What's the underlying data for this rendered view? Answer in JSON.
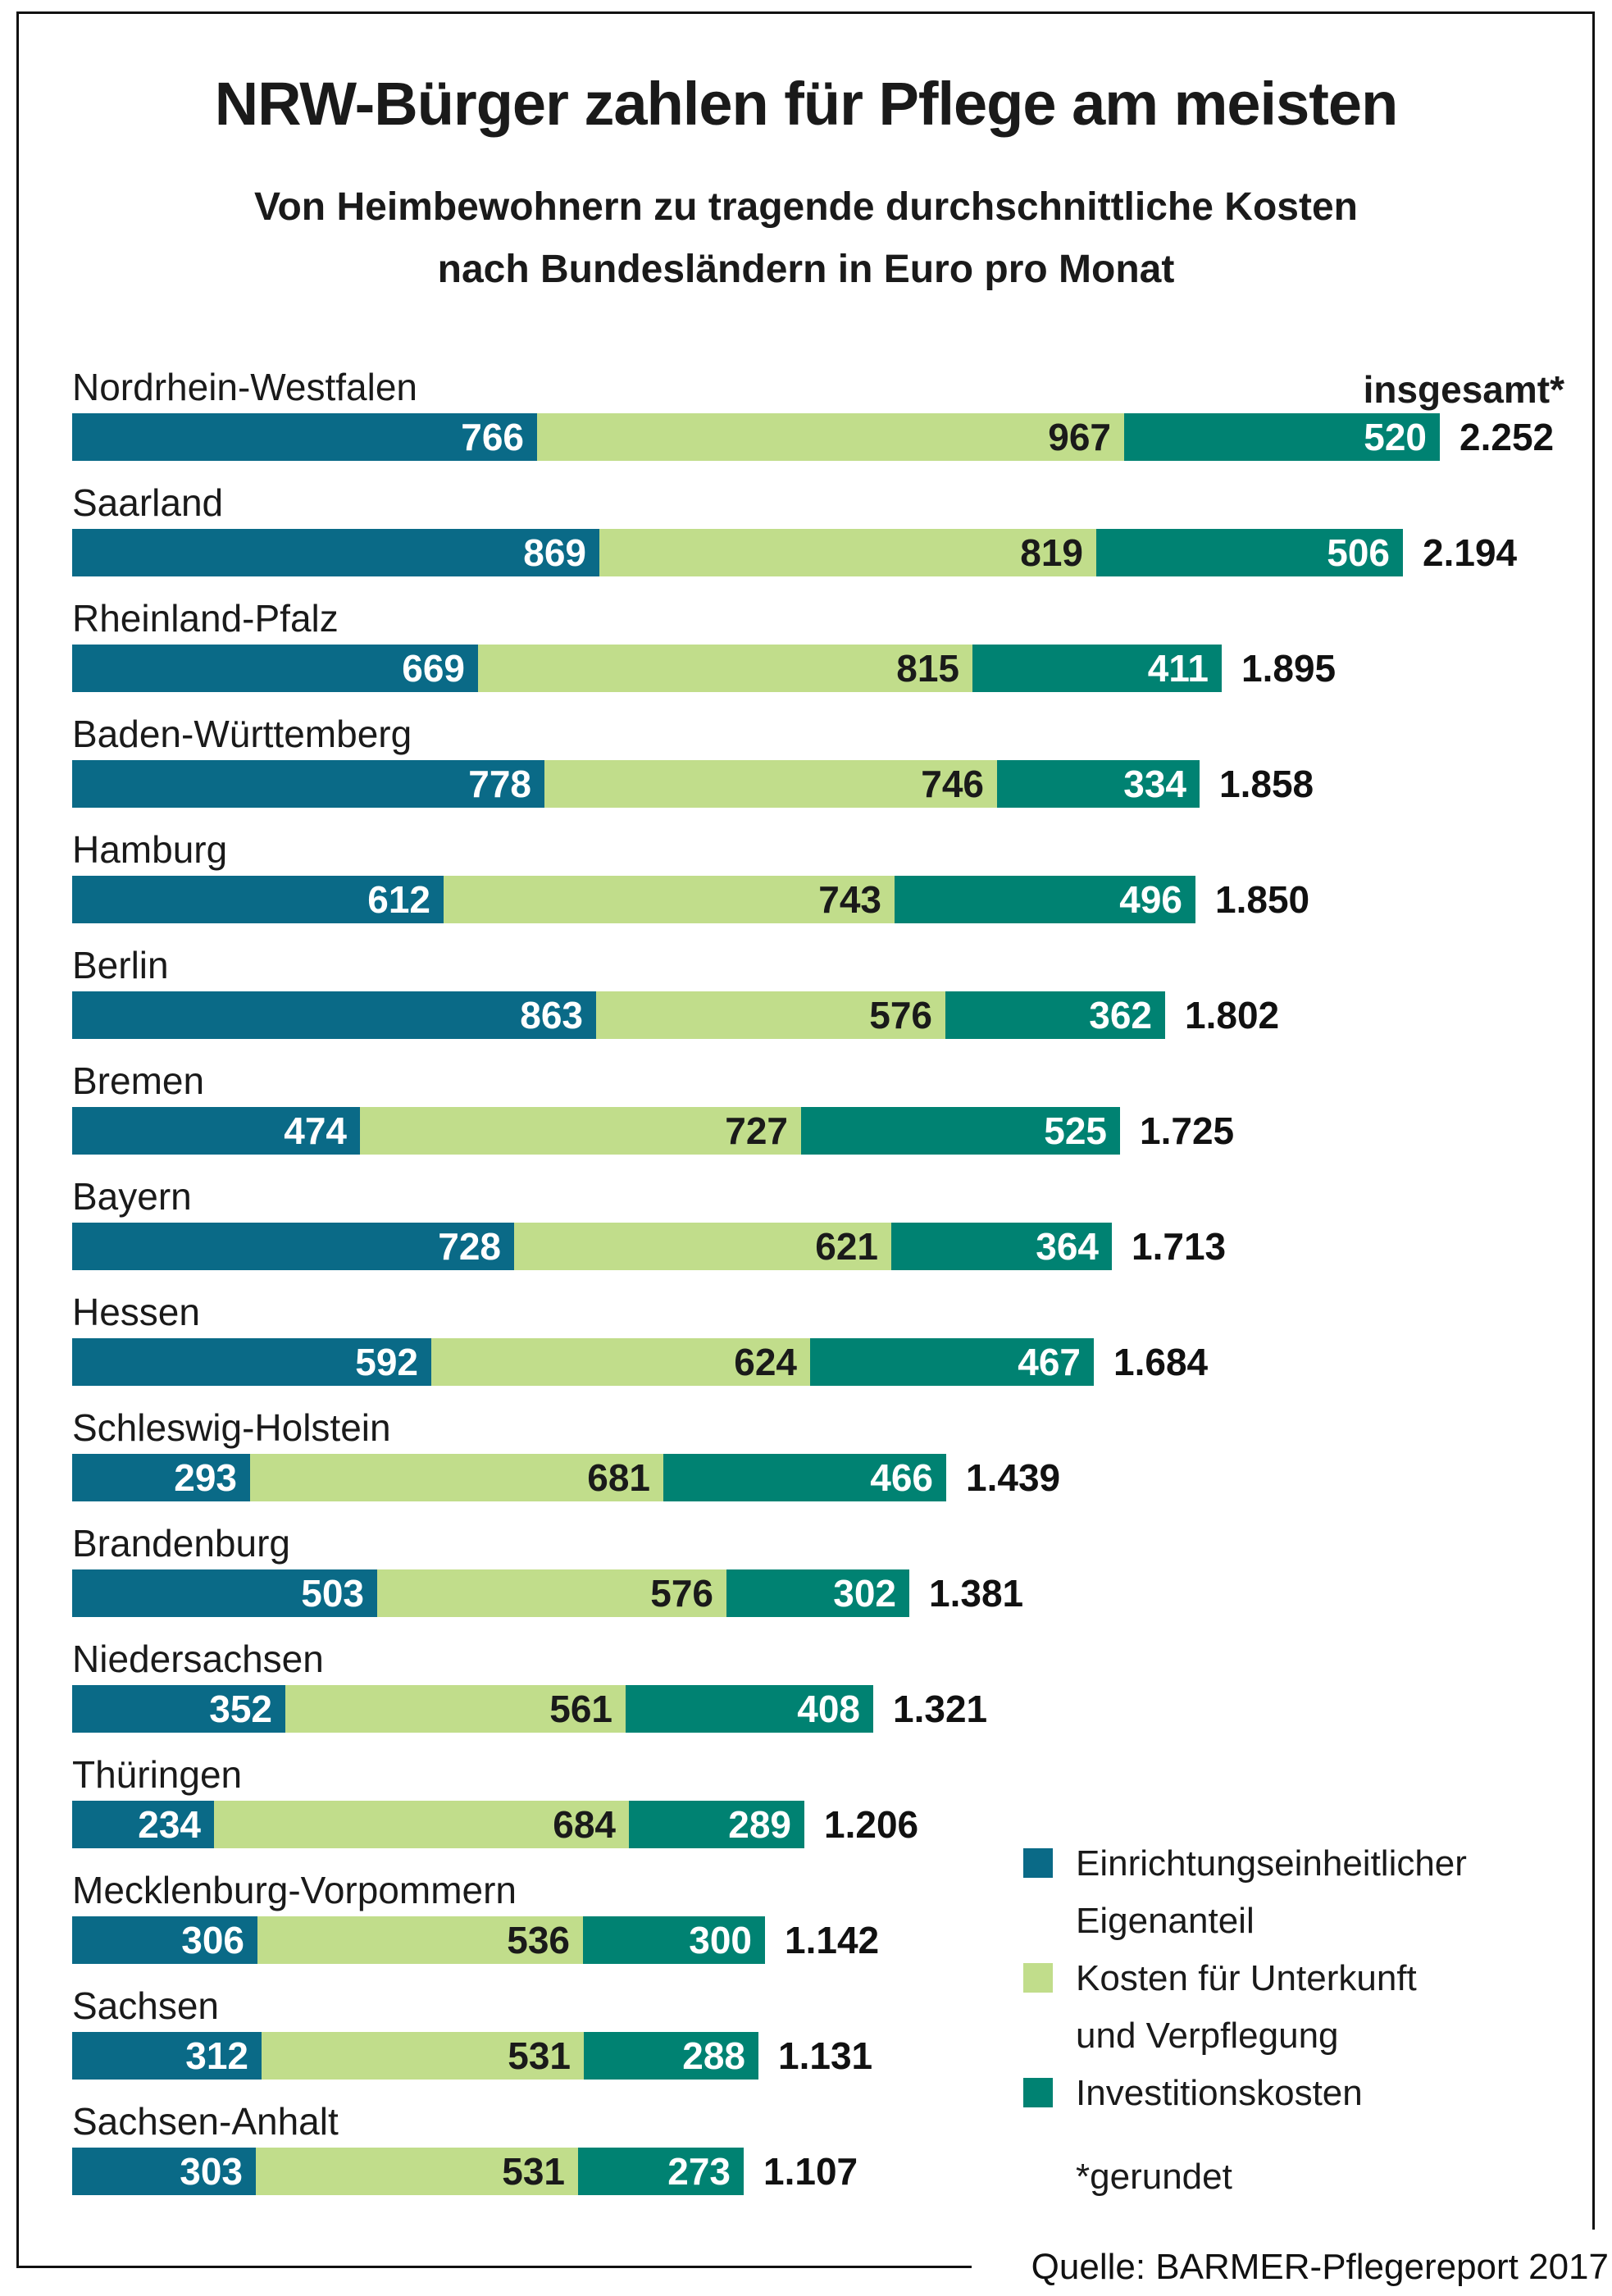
{
  "title": "NRW-Bürger zahlen für Pflege am meisten",
  "subtitle": {
    "line1": "Von Heimbewohnern zu tragende durchschnittliche Kosten",
    "line2": "nach Bundesländern in Euro pro Monat"
  },
  "total_column_header": "insgesamt*",
  "footnote": "*gerundet",
  "source": "Quelle: BARMER-Pflegereport 2017",
  "legend": [
    {
      "lines": [
        "Einrichtungseinheitlicher",
        "Eigenanteil"
      ]
    },
    {
      "lines": [
        "Kosten für Unterkunft",
        "und Verpflegung"
      ]
    },
    {
      "lines": [
        "Investitionskosten"
      ]
    }
  ],
  "colors": {
    "text": "#1a1a1a",
    "frame": "#111111",
    "background": "#ffffff"
  },
  "chart_data": {
    "type": "bar",
    "orientation": "horizontal",
    "stacked": true,
    "title": "NRW-Bürger zahlen für Pflege am meisten",
    "subtitle": "Von Heimbewohnern zu tragende durchschnittliche Kosten nach Bundesländern in Euro pro Monat",
    "xlim": [
      0,
      2252
    ],
    "grid": false,
    "legend_position": "bottom-right",
    "categories": [
      "Nordrhein-Westfalen",
      "Saarland",
      "Rheinland-Pfalz",
      "Baden-Württemberg",
      "Hamburg",
      "Berlin",
      "Bremen",
      "Bayern",
      "Hessen",
      "Schleswig-Holstein",
      "Brandenburg",
      "Niedersachsen",
      "Thüringen",
      "Mecklenburg-Vorpommern",
      "Sachsen",
      "Sachsen-Anhalt"
    ],
    "series": [
      {
        "name": "Einrichtungseinheitlicher Eigenanteil",
        "color": "#0a6a87",
        "value_color": "#ffffff",
        "values": [
          766,
          869,
          669,
          778,
          612,
          863,
          474,
          728,
          592,
          293,
          503,
          352,
          234,
          306,
          312,
          303
        ]
      },
      {
        "name": "Kosten für Unterkunft und Verpflegung",
        "color": "#c1dd8b",
        "value_color": "#1a1a1a",
        "values": [
          967,
          819,
          815,
          746,
          743,
          576,
          727,
          621,
          624,
          681,
          576,
          561,
          684,
          536,
          531,
          531
        ]
      },
      {
        "name": "Investitionskosten",
        "color": "#008272",
        "value_color": "#ffffff",
        "values": [
          520,
          506,
          411,
          334,
          496,
          362,
          525,
          364,
          467,
          466,
          302,
          408,
          289,
          300,
          288,
          273
        ]
      }
    ],
    "totals_display": [
      "2.252",
      "2.194",
      "1.895",
      "1.858",
      "1.850",
      "1.802",
      "1.725",
      "1.713",
      "1.684",
      "1.439",
      "1.381",
      "1.321",
      "1.206",
      "1.142",
      "1.131",
      "1.107"
    ]
  }
}
